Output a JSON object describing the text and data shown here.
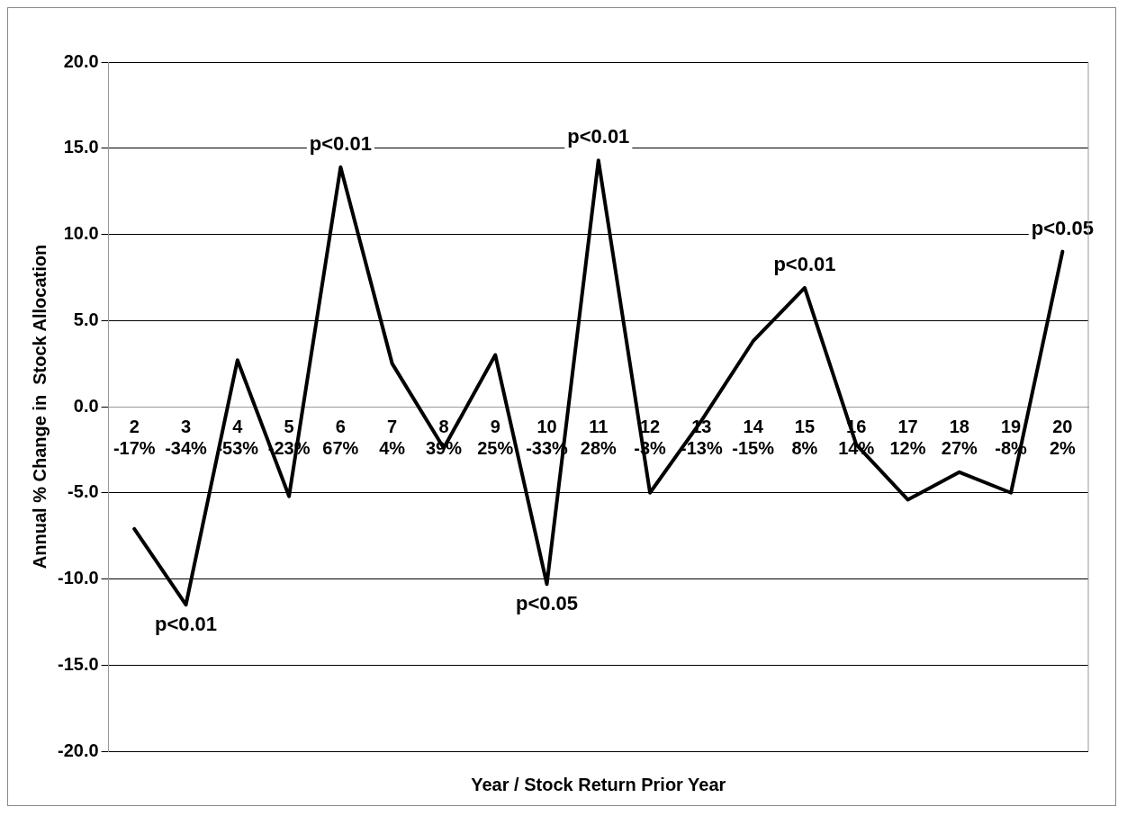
{
  "chart_data": {
    "type": "line",
    "xlabel": "Year / Stock Return Prior Year",
    "ylabel": "Annual % Change in  Stock Allocation",
    "categories": [
      "2\n-17%",
      "3\n-34%",
      "4\n-53%",
      "5\n-23%",
      "6\n67%",
      "7\n4%",
      "8\n39%",
      "9\n25%",
      "10\n-33%",
      "11\n28%",
      "12\n-3%",
      "13\n-13%",
      "14\n-15%",
      "15\n8%",
      "16\n14%",
      "17\n12%",
      "18\n27%",
      "19\n-8%",
      "20\n2%"
    ],
    "series": [
      {
        "color": "#000000",
        "values": [
          -7.1,
          -11.5,
          2.7,
          -5.2,
          13.9,
          2.5,
          -2.4,
          3.0,
          -10.3,
          14.3,
          -5.0,
          -0.8,
          3.8,
          6.9,
          -2.2,
          -5.4,
          -3.8,
          -5.0,
          9.0
        ]
      }
    ],
    "ylim": [
      -20,
      20
    ],
    "yticks": [
      {
        "value": -20,
        "label": "-20.0"
      },
      {
        "value": -15,
        "label": "-15.0"
      },
      {
        "value": -10,
        "label": "-10.0"
      },
      {
        "value": -5,
        "label": "-5.0"
      },
      {
        "value": 0,
        "label": "0.0"
      },
      {
        "value": 5,
        "label": "5.0"
      },
      {
        "value": 10,
        "label": "10.0"
      },
      {
        "value": 15,
        "label": "15.0"
      },
      {
        "value": 20,
        "label": "20.0"
      }
    ],
    "grid": "y",
    "legend": false,
    "marker": "none",
    "line_style": "solid",
    "annotations": [
      {
        "text": "p<0.01",
        "x": "3\n-34%",
        "y": -11.5
      },
      {
        "text": "p<0.01",
        "x": "6\n67%",
        "y": 13.9
      },
      {
        "text": "p<0.05",
        "x": "10\n-33%",
        "y": -10.3
      },
      {
        "text": "p<0.01",
        "x": "11\n28%",
        "y": 14.3
      },
      {
        "text": "p<0.01",
        "x": "15\n8%",
        "y": 6.9
      },
      {
        "text": "p<0.05",
        "x": "20\n2%",
        "y": 9.0
      }
    ]
  }
}
